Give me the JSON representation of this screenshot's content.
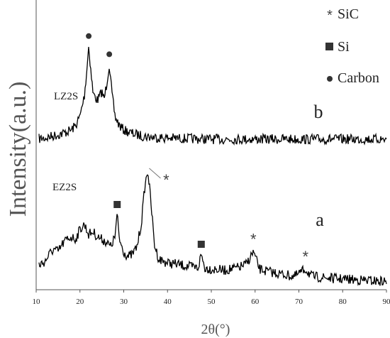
{
  "chart_data": {
    "type": "line",
    "xlabel": "2θ(°)",
    "ylabel": "Intensity(a.u.)",
    "xlim": [
      10,
      90
    ],
    "xticks": [
      10,
      20,
      30,
      40,
      50,
      60,
      70,
      80,
      90
    ],
    "grid": false,
    "legend_position": "top-right",
    "legend": [
      {
        "symbol": "*",
        "marker": "asterisk",
        "label": "SiC"
      },
      {
        "symbol": "■",
        "marker": "square",
        "label": "Si"
      },
      {
        "symbol": "●",
        "marker": "circle",
        "label": "Carbon"
      }
    ],
    "series": [
      {
        "name": "LZ2S",
        "tag": "b",
        "x": [
          10,
          12,
          14,
          16,
          18,
          19,
          20,
          21,
          21.5,
          22,
          22.5,
          23,
          24,
          25,
          25.5,
          26,
          26.7,
          27.3,
          28,
          29,
          30,
          32,
          34,
          36,
          38,
          40,
          45,
          50,
          55,
          60,
          65,
          70,
          75,
          80,
          85,
          90
        ],
        "y": [
          0.1,
          0.11,
          0.13,
          0.15,
          0.18,
          0.22,
          0.3,
          0.48,
          0.68,
          0.92,
          0.7,
          0.5,
          0.44,
          0.52,
          0.45,
          0.56,
          0.76,
          0.5,
          0.3,
          0.22,
          0.18,
          0.15,
          0.13,
          0.12,
          0.115,
          0.11,
          0.105,
          0.1,
          0.1,
          0.1,
          0.1,
          0.1,
          0.1,
          0.1,
          0.1,
          0.1
        ],
        "peaks": [
          {
            "x": 22,
            "phase": "Carbon"
          },
          {
            "x": 26.7,
            "phase": "Carbon"
          }
        ]
      },
      {
        "name": "EZ2S",
        "tag": "a",
        "x": [
          10,
          12,
          13,
          14,
          15,
          16,
          17,
          18,
          19,
          20,
          21,
          22,
          23,
          24,
          25,
          26,
          27,
          28,
          28.5,
          29,
          30,
          31,
          32,
          33,
          34,
          34.8,
          35.5,
          36.3,
          37,
          38,
          40,
          42,
          45,
          47,
          47.7,
          48.5,
          50,
          53,
          56,
          58,
          59.6,
          61,
          63,
          66,
          69,
          71.5,
          73,
          76,
          80,
          85,
          90
        ],
        "y": [
          0.14,
          0.18,
          0.24,
          0.28,
          0.26,
          0.32,
          0.36,
          0.38,
          0.36,
          0.44,
          0.48,
          0.4,
          0.42,
          0.38,
          0.36,
          0.34,
          0.3,
          0.38,
          0.56,
          0.36,
          0.26,
          0.22,
          0.24,
          0.3,
          0.48,
          0.78,
          0.92,
          0.62,
          0.32,
          0.2,
          0.17,
          0.16,
          0.14,
          0.13,
          0.24,
          0.13,
          0.12,
          0.11,
          0.13,
          0.16,
          0.26,
          0.12,
          0.1,
          0.08,
          0.06,
          0.12,
          0.06,
          0.05,
          0.04,
          0.03,
          0.02
        ],
        "peaks": [
          {
            "x": 28.5,
            "phase": "Si"
          },
          {
            "x": 35.5,
            "phase": "SiC"
          },
          {
            "x": 47.7,
            "phase": "Si"
          },
          {
            "x": 59.6,
            "phase": "SiC"
          },
          {
            "x": 71.5,
            "phase": "SiC"
          }
        ]
      }
    ]
  }
}
